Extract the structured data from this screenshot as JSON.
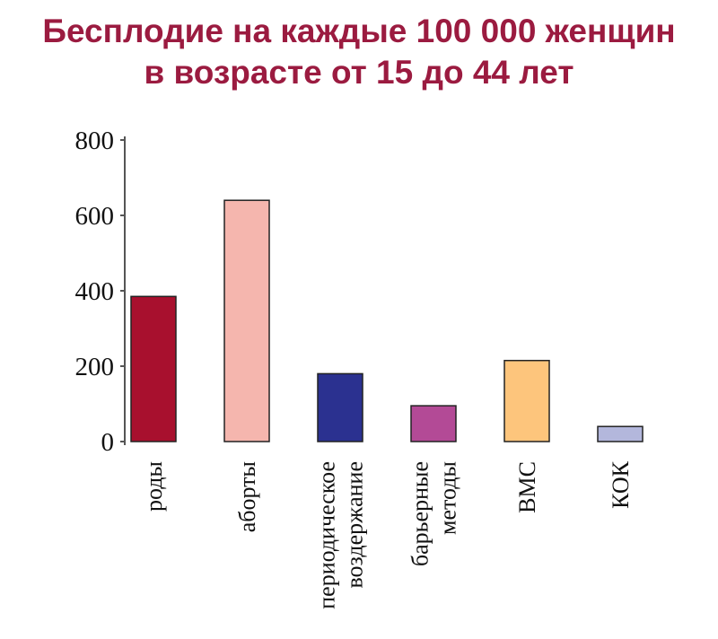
{
  "title": {
    "line1": "Бесплодие на каждые 100 000 женщин",
    "line2": "в возрасте от 15 до 44 лет"
  },
  "chart_data": {
    "type": "bar",
    "title": "Бесплодие на каждые 100 000 женщин в возрасте от 15 до 44 лет",
    "xlabel": "",
    "ylabel": "",
    "ylim": [
      0,
      800
    ],
    "yticks": [
      "0",
      "200",
      "400",
      "600",
      "800"
    ],
    "grid": false,
    "categories": [
      [
        "роды"
      ],
      [
        "аборты"
      ],
      [
        "периодическое",
        "воздержание"
      ],
      [
        "барьерные",
        "методы"
      ],
      [
        "ВМС"
      ],
      [
        "КОК"
      ]
    ],
    "values": [
      385,
      640,
      180,
      95,
      215,
      40
    ],
    "colors": [
      "#a8102e",
      "#f5b6ae",
      "#2b3190",
      "#b34a96",
      "#fdc57c",
      "#b3b7dc"
    ]
  }
}
